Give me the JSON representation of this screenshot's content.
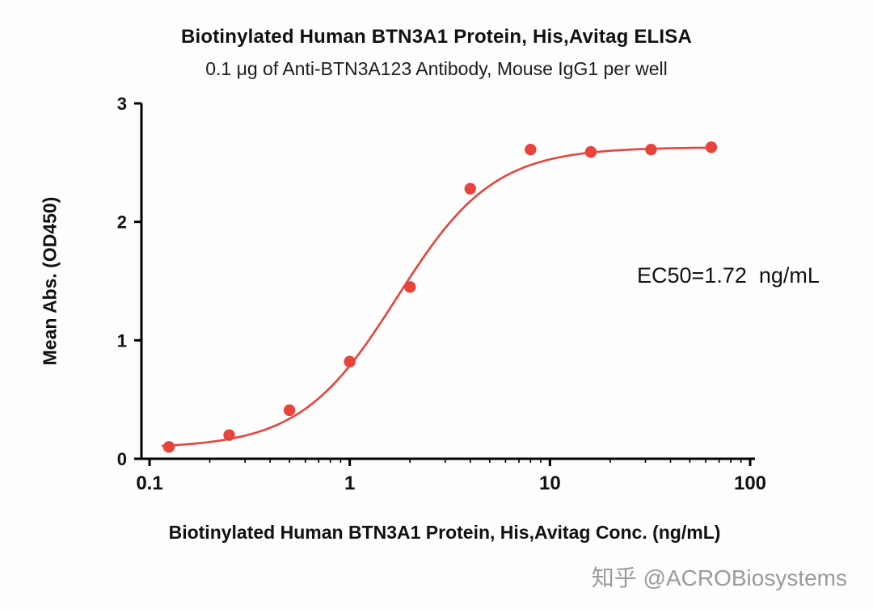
{
  "chart_data": {
    "type": "scatter",
    "title": "Biotinylated Human BTN3A1 Protein, His,Avitag ELISA",
    "subtitle": "0.1 μg of Anti-BTN3A123 Antibody, Mouse IgG1 per well",
    "xlabel": "Biotinylated Human BTN3A1 Protein, His,Avitag Conc. (ng/mL)",
    "ylabel": "Mean Abs. (OD450)",
    "x_scale": "log10",
    "xlim": [
      0.1,
      100
    ],
    "ylim": [
      0,
      3
    ],
    "x_ticks": [
      0.1,
      1,
      10,
      100
    ],
    "x_tick_labels": [
      "0.1",
      "1",
      "10",
      "100"
    ],
    "y_ticks": [
      0,
      1,
      2,
      3
    ],
    "y_tick_labels": [
      "0",
      "1",
      "2",
      "3"
    ],
    "grid": false,
    "legend": false,
    "annotation": "EC50=1.72  ng/mL",
    "series": [
      {
        "name": "Anti-BTN3A123 Antibody, Mouse IgG1",
        "color": "#e8433c",
        "x": [
          0.125,
          0.25,
          0.5,
          1,
          2,
          4,
          8,
          16,
          32,
          64
        ],
        "y": [
          0.1,
          0.2,
          0.41,
          0.82,
          1.45,
          2.28,
          2.61,
          2.59,
          2.61,
          2.63
        ]
      }
    ],
    "fit": {
      "model": "4PL",
      "bottom": 0.09,
      "top": 2.63,
      "ec50": 1.72,
      "hill": 1.8
    }
  },
  "watermark": {
    "text": "知乎 @ACROBiosystems"
  }
}
